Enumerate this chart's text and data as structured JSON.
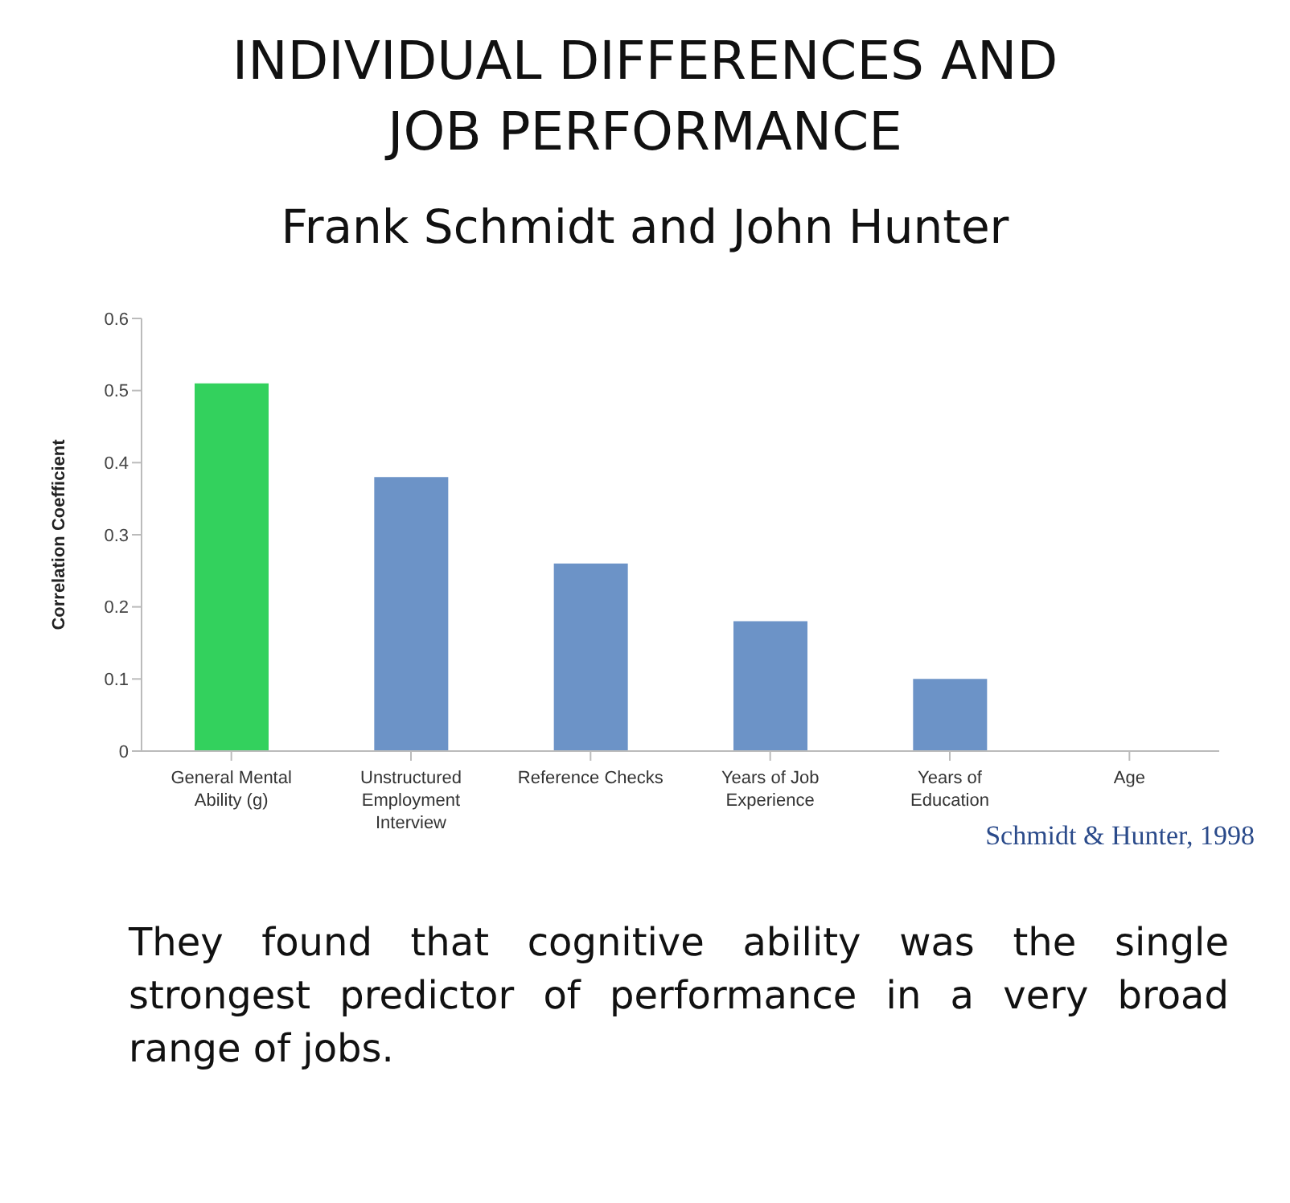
{
  "chart_data": {
    "type": "bar",
    "title": "INDIVIDUAL DIFFERENCES AND JOB PERFORMANCE",
    "subtitle": "Frank Schmidt and John Hunter",
    "ylabel": "Correlation Coefficient",
    "categories": [
      "General Mental Ability (g)",
      "Unstructured Employment Interview",
      "Reference Checks",
      "Years of Job Experience",
      "Years of Education",
      "Age"
    ],
    "values": [
      0.51,
      0.38,
      0.26,
      0.18,
      0.1,
      0
    ],
    "colors": [
      "#33d15d",
      "#6c93c7",
      "#6c93c7",
      "#6c93c7",
      "#6c93c7",
      "#6c93c7"
    ],
    "ylim": [
      0,
      0.6
    ],
    "yticks": [
      0,
      0.1,
      0.2,
      0.3,
      0.4,
      0.5,
      0.6
    ],
    "grid": false,
    "legend": false,
    "annotations": [
      "Schmidt & Hunter, 1998",
      "They found that cognitive ability was the single strongest predictor of performance in a very broad range of jobs."
    ]
  }
}
